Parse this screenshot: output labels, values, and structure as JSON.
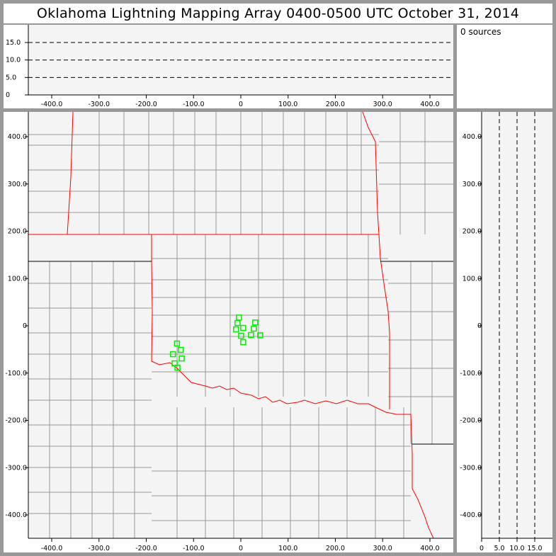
{
  "title": "Oklahoma Lightning Mapping Array   0400-0500 UTC  October 31, 2014",
  "sources_label": "0 sources",
  "colors": {
    "background": "#999999",
    "plot_bg": "#f4f4f4",
    "state_border": "#ff0000",
    "county_border": "#999999",
    "station": "#00ee00"
  },
  "chart_data": [
    {
      "type": "line",
      "name_hint": "altitude-vs-east-west",
      "xlim": [
        -460,
        440
      ],
      "ylim": [
        0,
        20
      ],
      "x_ticks": [
        "-400.0",
        "-300.0",
        "-200.0",
        "-100.0",
        "0",
        "100.0",
        "200.0",
        "300.0",
        "400.0"
      ],
      "x_tick_values": [
        -400,
        -300,
        -200,
        -100,
        0,
        100,
        200,
        300,
        400
      ],
      "y_ticks": [
        "0",
        "5.0",
        "10.0",
        "15.0"
      ],
      "y_tick_values": [
        0,
        5,
        10,
        15
      ],
      "dashed_reference_lines": [
        5,
        10,
        15
      ]
    },
    {
      "type": "scatter",
      "name_hint": "plan-view-map",
      "xlim": [
        -460,
        440
      ],
      "ylim": [
        -450,
        452
      ],
      "x_ticks": [
        "-400.0",
        "-300.0",
        "-200.0",
        "-100.0",
        "0",
        "100.0",
        "200.0",
        "300.0",
        "400.0"
      ],
      "x_tick_values": [
        -400,
        -300,
        -200,
        -100,
        0,
        100,
        200,
        300,
        400
      ],
      "y_ticks": [
        "400.0",
        "300.0",
        "200.0",
        "100.0",
        "0",
        "-100.0",
        "-200.0",
        "-300.0",
        "-400.0"
      ],
      "y_tick_values": [
        400,
        300,
        200,
        100,
        0,
        -100,
        -200,
        -300,
        -400
      ],
      "stations": [
        [
          -4,
          17.5
        ],
        [
          -7,
          6
        ],
        [
          -10,
          -7.5
        ],
        [
          5,
          -4.5
        ],
        [
          0.5,
          -21
        ],
        [
          5,
          -34.5
        ],
        [
          30.5,
          7
        ],
        [
          27.5,
          -6
        ],
        [
          21.5,
          -19.5
        ],
        [
          41,
          -20
        ],
        [
          -135,
          -37.5
        ],
        [
          -127,
          -51
        ],
        [
          -143.5,
          -60
        ],
        [
          -125,
          -69
        ],
        [
          -140,
          -79.5
        ],
        [
          -134,
          -88.5
        ]
      ]
    },
    {
      "type": "line",
      "name_hint": "north-south-vs-altitude",
      "xlim": [
        0,
        20
      ],
      "ylim": [
        -450,
        452
      ],
      "x_ticks": [
        "0",
        "5.0",
        "10.0",
        "15.0"
      ],
      "x_tick_values": [
        0,
        5,
        10,
        15
      ],
      "y_ticks": [
        "400.0",
        "300.0",
        "200.0",
        "100.0",
        "0",
        "-100.0",
        "-200.0",
        "-300.0",
        "-400.0"
      ],
      "y_tick_values": [
        400,
        300,
        200,
        100,
        0,
        -100,
        -200,
        -300,
        -400
      ],
      "dashed_reference_lines": [
        5,
        10,
        15
      ]
    }
  ]
}
